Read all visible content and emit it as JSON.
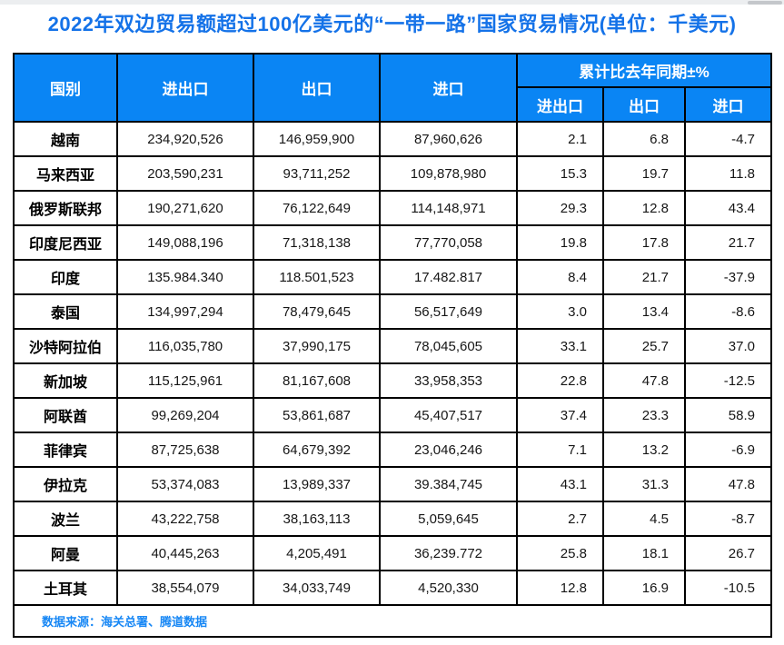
{
  "page": {
    "title": "2022年双边贸易额超过100亿美元的“一带一路”国家贸易情况(单位：千美元)",
    "source_note": "数据来源：海关总署、腾道数据"
  },
  "colors": {
    "title_text": "#1472e8",
    "header_bg": "#0a85f4",
    "header_text": "#ffffff",
    "border": "#000000",
    "source_text": "#1787f5",
    "scrollbar_track": "#eceef0",
    "scrollbar_thumb": "#c4c7cb"
  },
  "table": {
    "headers": {
      "country": "国别",
      "total": "进出口",
      "export": "出口",
      "import": "进口",
      "yoy_group": "累计比去年同期±%",
      "yoy_total": "进出口",
      "yoy_export": "出口",
      "yoy_import": "进口"
    },
    "rows": [
      {
        "country": "越南",
        "total": "234,920,526",
        "export": "146,959,900",
        "import": "87,960,626",
        "yoy_total": "2.1",
        "yoy_export": "6.8",
        "yoy_import": "-4.7"
      },
      {
        "country": "马来西亚",
        "total": "203,590,231",
        "export": "93,711,252",
        "import": "109,878,980",
        "yoy_total": "15.3",
        "yoy_export": "19.7",
        "yoy_import": "11.8"
      },
      {
        "country": "俄罗斯联邦",
        "total": "190,271,620",
        "export": "76,122,649",
        "import": "114,148,971",
        "yoy_total": "29.3",
        "yoy_export": "12.8",
        "yoy_import": "43.4"
      },
      {
        "country": "印度尼西亚",
        "total": "149,088,196",
        "export": "71,318,138",
        "import": "77,770,058",
        "yoy_total": "19.8",
        "yoy_export": "17.8",
        "yoy_import": "21.7"
      },
      {
        "country": "印度",
        "total": "135.984.340",
        "export": "118.501,523",
        "import": "17.482.817",
        "yoy_total": "8.4",
        "yoy_export": "21.7",
        "yoy_import": "-37.9"
      },
      {
        "country": "泰国",
        "total": "134,997,294",
        "export": "78,479,645",
        "import": "56,517,649",
        "yoy_total": "3.0",
        "yoy_export": "13.4",
        "yoy_import": "-8.6"
      },
      {
        "country": "沙特阿拉伯",
        "total": "116,035,780",
        "export": "37,990,175",
        "import": "78,045,605",
        "yoy_total": "33.1",
        "yoy_export": "25.7",
        "yoy_import": "37.0"
      },
      {
        "country": "新加坡",
        "total": "115,125,961",
        "export": "81,167,608",
        "import": "33,958,353",
        "yoy_total": "22.8",
        "yoy_export": "47.8",
        "yoy_import": "-12.5"
      },
      {
        "country": "阿联酋",
        "total": "99,269,204",
        "export": "53,861,687",
        "import": "45,407,517",
        "yoy_total": "37.4",
        "yoy_export": "23.3",
        "yoy_import": "58.9"
      },
      {
        "country": "菲律宾",
        "total": "87,725,638",
        "export": "64,679,392",
        "import": "23,046,246",
        "yoy_total": "7.1",
        "yoy_export": "13.2",
        "yoy_import": "-6.9"
      },
      {
        "country": "伊拉克",
        "total": "53,374,083",
        "export": "13,989,337",
        "import": "39.384,745",
        "yoy_total": "43.1",
        "yoy_export": "31.3",
        "yoy_import": "47.8"
      },
      {
        "country": "波兰",
        "total": "43,222,758",
        "export": "38,163,113",
        "import": "5,059,645",
        "yoy_total": "2.7",
        "yoy_export": "4.5",
        "yoy_import": "-8.7"
      },
      {
        "country": "阿曼",
        "total": "40,445,263",
        "export": "4,205,491",
        "import": "36,239.772",
        "yoy_total": "25.8",
        "yoy_export": "18.1",
        "yoy_import": "26.7"
      },
      {
        "country": "土耳其",
        "total": "38,554,079",
        "export": "34,033,749",
        "import": "4,520,330",
        "yoy_total": "12.8",
        "yoy_export": "16.9",
        "yoy_import": "-10.5"
      }
    ]
  },
  "chart_data": {
    "type": "table",
    "title": "2022年双边贸易额超过100亿美元的“一带一路”国家贸易情况",
    "unit": "千美元",
    "columns": [
      "国别",
      "进出口",
      "出口",
      "进口",
      "累计比去年同期±% 进出口",
      "累计比去年同期±% 出口",
      "累计比去年同期±% 进口"
    ],
    "rows": [
      [
        "越南",
        "234,920,526",
        "146,959,900",
        "87,960,626",
        2.1,
        6.8,
        -4.7
      ],
      [
        "马来西亚",
        "203,590,231",
        "93,711,252",
        "109,878,980",
        15.3,
        19.7,
        11.8
      ],
      [
        "俄罗斯联邦",
        "190,271,620",
        "76,122,649",
        "114,148,971",
        29.3,
        12.8,
        43.4
      ],
      [
        "印度尼西亚",
        "149,088,196",
        "71,318,138",
        "77,770,058",
        19.8,
        17.8,
        21.7
      ],
      [
        "印度",
        "135.984.340",
        "118.501,523",
        "17.482.817",
        8.4,
        21.7,
        -37.9
      ],
      [
        "泰国",
        "134,997,294",
        "78,479,645",
        "56,517,649",
        3.0,
        13.4,
        -8.6
      ],
      [
        "沙特阿拉伯",
        "116,035,780",
        "37,990,175",
        "78,045,605",
        33.1,
        25.7,
        37.0
      ],
      [
        "新加坡",
        "115,125,961",
        "81,167,608",
        "33,958,353",
        22.8,
        47.8,
        -12.5
      ],
      [
        "阿联酋",
        "99,269,204",
        "53,861,687",
        "45,407,517",
        37.4,
        23.3,
        58.9
      ],
      [
        "菲律宾",
        "87,725,638",
        "64,679,392",
        "23,046,246",
        7.1,
        13.2,
        -6.9
      ],
      [
        "伊拉克",
        "53,374,083",
        "13,989,337",
        "39.384,745",
        43.1,
        31.3,
        47.8
      ],
      [
        "波兰",
        "43,222,758",
        "38,163,113",
        "5,059,645",
        2.7,
        4.5,
        -8.7
      ],
      [
        "阿曼",
        "40,445,263",
        "4,205,491",
        "36,239.772",
        25.8,
        18.1,
        26.7
      ],
      [
        "土耳其",
        "38,554,079",
        "34,033,749",
        "4,520,330",
        12.8,
        16.9,
        -10.5
      ]
    ],
    "source": "数据来源：海关总署、腾道数据"
  }
}
